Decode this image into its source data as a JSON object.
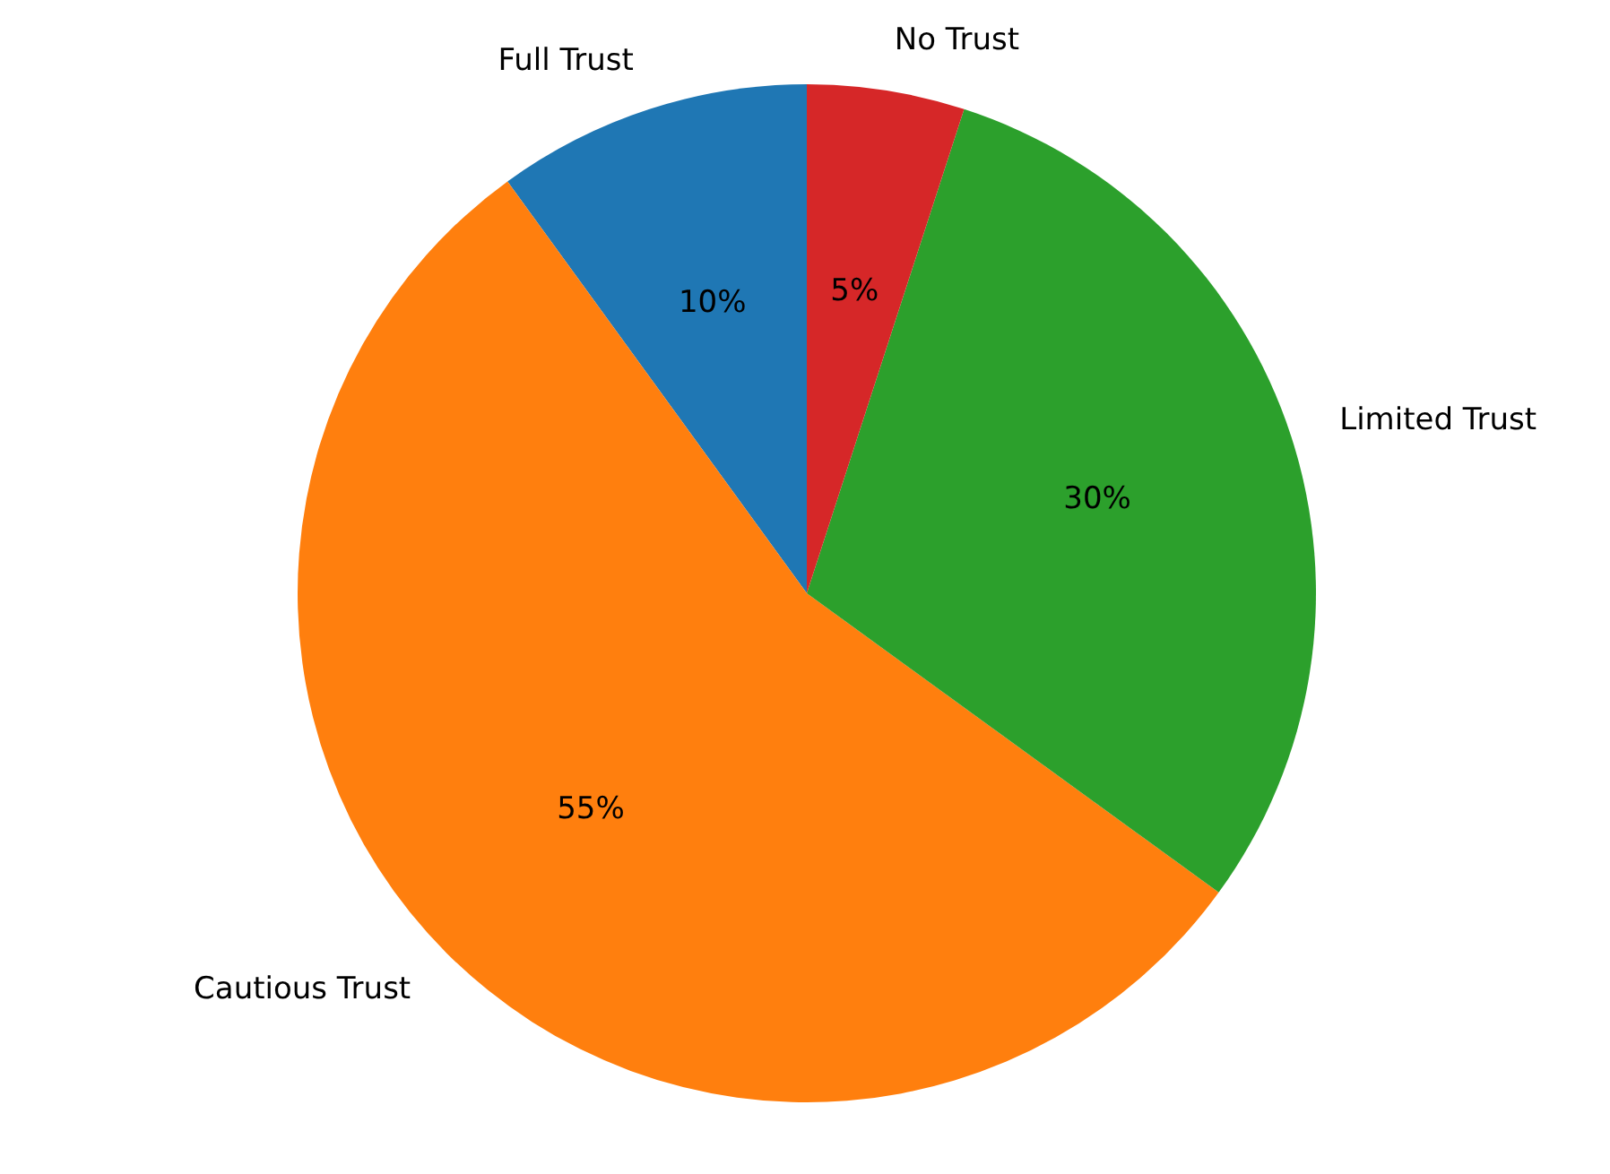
{
  "chart_data": {
    "type": "pie",
    "categories": [
      "Full Trust",
      "Cautious Trust",
      "Limited Trust",
      "No Trust"
    ],
    "values": [
      10,
      55,
      30,
      5
    ],
    "colors": [
      "#1f77b4",
      "#ff7f0e",
      "#2ca02c",
      "#d62728"
    ],
    "value_labels": [
      "10%",
      "55%",
      "30%",
      "5%"
    ]
  }
}
